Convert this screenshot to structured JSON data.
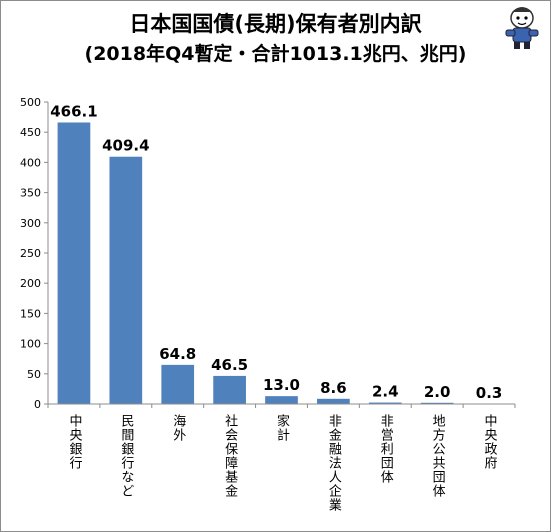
{
  "title_line1": "日本国国債(長期)保有者別内訳",
  "title_line2": "(2018年Q4暫定・合計1013.1兆円、兆円)",
  "colors": {
    "bar": "#4f81bd",
    "axis": "#8c8c8c",
    "text": "#000000"
  },
  "chart_data": {
    "type": "bar",
    "title": "日本国国債(長期)保有者別内訳",
    "subtitle": "(2018年Q4暫定・合計1013.1兆円、兆円)",
    "categories": [
      "中央銀行",
      "民間銀行など",
      "海外",
      "社会保障基金",
      "家計",
      "非金融法人企業",
      "非営利団体",
      "地方公共団体",
      "中央政府"
    ],
    "values": [
      466.1,
      409.4,
      64.8,
      46.5,
      13.0,
      8.6,
      2.4,
      2.0,
      0.3
    ],
    "value_labels": [
      "466.1",
      "409.4",
      "64.8",
      "46.5",
      "13.0",
      "8.6",
      "2.4",
      "2.0",
      "0.3"
    ],
    "yticks": [
      "0",
      "50",
      "100",
      "150",
      "200",
      "250",
      "300",
      "350",
      "400",
      "450",
      "500"
    ],
    "ylim": [
      0,
      500
    ],
    "grid": false,
    "legend": "none"
  }
}
